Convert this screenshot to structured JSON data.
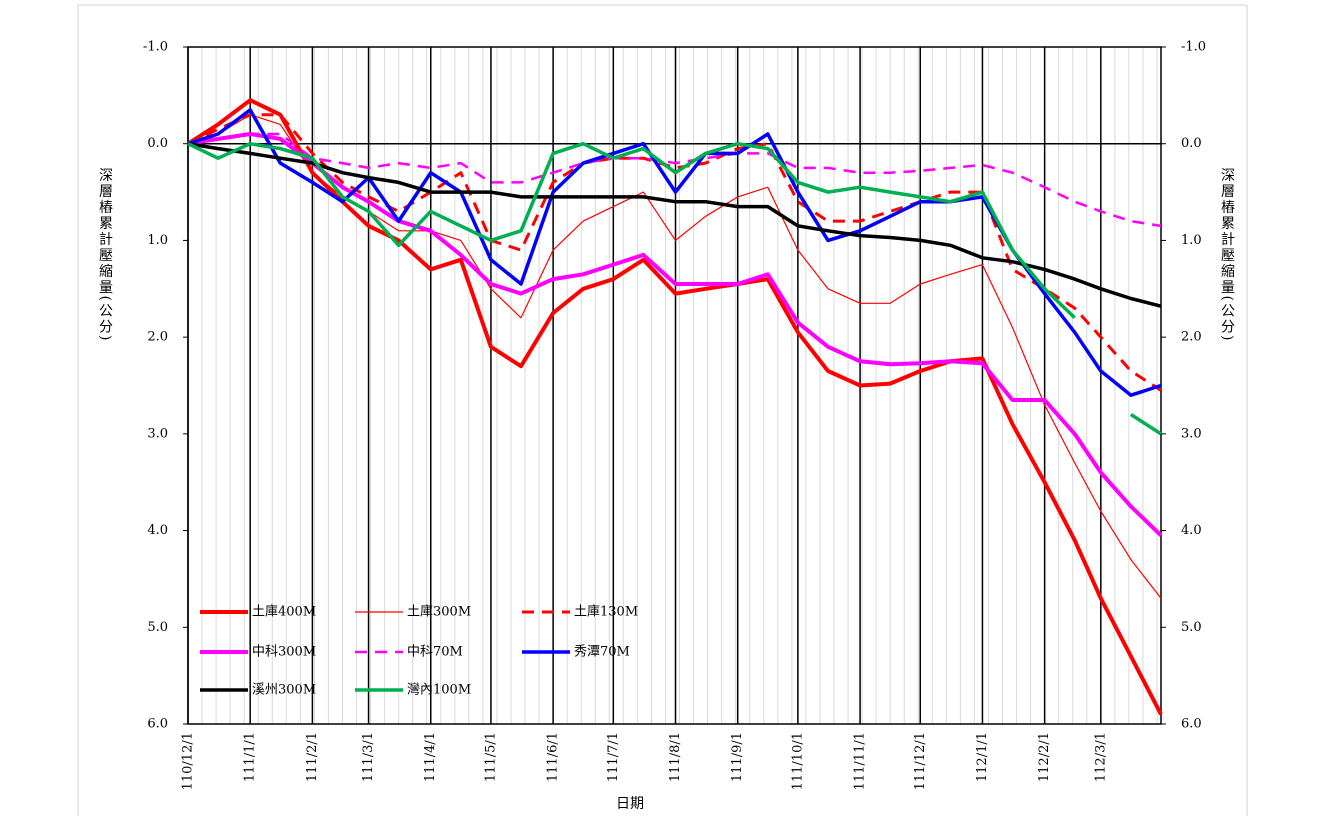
{
  "chart_data": {
    "type": "line",
    "xlabel": "日期",
    "ylabel": "深層樁累計壓縮量(公分)",
    "y2label": "深層樁累計壓縮量(公分)",
    "x": [
      "110/12/1",
      "110/12/16",
      "111/1/1",
      "111/1/16",
      "111/2/1",
      "111/2/16",
      "111/3/1",
      "111/3/16",
      "111/4/1",
      "111/4/16",
      "111/5/1",
      "111/5/16",
      "111/6/1",
      "111/6/16",
      "111/7/1",
      "111/7/16",
      "111/8/1",
      "111/8/16",
      "111/9/1",
      "111/9/16",
      "111/10/1",
      "111/10/16",
      "111/11/1",
      "111/11/16",
      "111/12/1",
      "111/12/16",
      "112/1/1",
      "112/1/16",
      "112/2/1",
      "112/2/16",
      "112/3/1",
      "112/3/16",
      "112/3/31"
    ],
    "xlim": [
      "110/12/1",
      "112/3/31"
    ],
    "xticks": [
      "110/12/1",
      "111/1/1",
      "111/2/1",
      "111/3/1",
      "111/4/1",
      "111/5/1",
      "111/6/1",
      "111/7/1",
      "111/8/1",
      "111/9/1",
      "111/10/1",
      "111/11/1",
      "111/12/1",
      "112/1/1",
      "112/2/1",
      "112/3/1"
    ],
    "ylim": [
      -1,
      6
    ],
    "y_inverted": true,
    "yticks": [
      {
        "value": -1,
        "label": "-1.0",
        "color": "#ff0000"
      },
      {
        "value": 0,
        "label": "0.0"
      },
      {
        "value": 1,
        "label": "1.0"
      },
      {
        "value": 2,
        "label": "2.0"
      },
      {
        "value": 3,
        "label": "3.0"
      },
      {
        "value": 4,
        "label": "4.0"
      },
      {
        "value": 5,
        "label": "5.0"
      },
      {
        "value": 6,
        "label": "6.0"
      }
    ],
    "y2lim": [
      -1,
      6
    ],
    "y2ticks": [
      {
        "value": -1,
        "label": "-1.0",
        "color": "#ff0000"
      },
      {
        "value": 0,
        "label": "0.0"
      },
      {
        "value": 1,
        "label": "1.0"
      },
      {
        "value": 2,
        "label": "2.0"
      },
      {
        "value": 3,
        "label": "3.0"
      },
      {
        "value": 4,
        "label": "4.0"
      },
      {
        "value": 5,
        "label": "5.0"
      },
      {
        "value": 6,
        "label": "6.0"
      }
    ],
    "zero_line": true,
    "x_grid": true,
    "legend": "lower left",
    "series": [
      {
        "name": "土庫400M",
        "color": "#ff0000",
        "width": 4,
        "dashed": false,
        "values": [
          0,
          -0.2,
          -0.45,
          -0.3,
          0.3,
          0.6,
          0.85,
          1.0,
          1.3,
          1.2,
          2.1,
          2.3,
          1.75,
          1.5,
          1.4,
          1.2,
          1.55,
          1.5,
          1.45,
          1.4,
          1.95,
          2.35,
          2.5,
          2.48,
          2.35,
          2.25,
          2.22,
          2.9,
          3.5,
          4.1,
          4.7,
          5.3,
          5.9
        ]
      },
      {
        "name": "土庫300M",
        "color": "#ff0000",
        "width": 1.2,
        "dashed": false,
        "values": [
          0,
          -0.1,
          -0.3,
          -0.2,
          0.3,
          0.55,
          0.7,
          0.9,
          0.9,
          1.0,
          1.5,
          1.8,
          1.1,
          0.8,
          0.65,
          0.5,
          1.0,
          0.75,
          0.55,
          0.45,
          1.1,
          1.5,
          1.65,
          1.65,
          1.45,
          1.35,
          1.25,
          1.9,
          2.7,
          3.3,
          3.8,
          4.3,
          4.7
        ]
      },
      {
        "name": "土庫130M",
        "color": "#ff0000",
        "width": 3,
        "dashed": true,
        "values": [
          0,
          -0.15,
          -0.3,
          -0.3,
          0.1,
          0.4,
          0.55,
          0.7,
          0.5,
          0.3,
          1.0,
          1.1,
          0.4,
          0.2,
          0.15,
          0.15,
          0.25,
          0.2,
          0.05,
          0,
          0.6,
          0.8,
          0.8,
          0.7,
          0.6,
          0.5,
          0.5,
          1.3,
          1.5,
          1.7,
          2.0,
          2.35,
          2.55
        ]
      },
      {
        "name": "中科300M",
        "color": "#ff00ff",
        "width": 4,
        "dashed": false,
        "values": [
          0,
          -0.05,
          -0.1,
          -0.05,
          0.2,
          0.45,
          0.6,
          0.8,
          0.9,
          1.15,
          1.45,
          1.55,
          1.4,
          1.35,
          1.25,
          1.15,
          1.45,
          1.45,
          1.45,
          1.35,
          1.85,
          2.1,
          2.25,
          2.28,
          2.27,
          2.25,
          2.27,
          2.65,
          2.65,
          3.0,
          3.4,
          3.75,
          4.05
        ]
      },
      {
        "name": "中科70M",
        "color": "#ff00ff",
        "width": 2.5,
        "dashed": true,
        "values": [
          0,
          -0.05,
          -0.1,
          -0.1,
          0.15,
          0.2,
          0.25,
          0.2,
          0.25,
          0.2,
          0.4,
          0.4,
          0.3,
          0.2,
          0.15,
          0.15,
          0.2,
          0.15,
          0.1,
          0.1,
          0.25,
          0.25,
          0.3,
          0.3,
          0.28,
          0.25,
          0.22,
          0.3,
          0.45,
          0.6,
          0.7,
          0.8,
          0.85
        ]
      },
      {
        "name": "秀潭70M",
        "color": "#0000ff",
        "width": 3.5,
        "dashed": false,
        "values": [
          0,
          -0.1,
          -0.35,
          0.2,
          0.4,
          0.6,
          0.35,
          0.8,
          0.3,
          0.5,
          1.2,
          1.45,
          0.5,
          0.2,
          0.1,
          0,
          0.5,
          0.1,
          0.1,
          -0.1,
          0.5,
          1.0,
          0.9,
          0.75,
          0.6,
          0.6,
          0.55,
          1.1,
          1.55,
          1.95,
          2.35,
          2.6,
          2.5
        ]
      },
      {
        "name": "溪州300M",
        "color": "#000000",
        "width": 3.5,
        "dashed": false,
        "values": [
          0,
          0.05,
          0.1,
          0.15,
          0.2,
          0.3,
          0.35,
          0.4,
          0.5,
          0.5,
          0.5,
          0.55,
          0.55,
          0.55,
          0.55,
          0.55,
          0.6,
          0.6,
          0.65,
          0.65,
          0.85,
          0.9,
          0.95,
          0.97,
          1.0,
          1.05,
          1.18,
          1.22,
          1.3,
          1.4,
          1.5,
          1.6,
          1.68
        ]
      },
      {
        "name": "灣內100M",
        "color": "#00b050",
        "width": 3.5,
        "dashed": false,
        "values": [
          0,
          0.15,
          0,
          0.05,
          0.15,
          0.55,
          0.7,
          1.05,
          0.7,
          0.85,
          1.0,
          0.9,
          0.1,
          0,
          0.15,
          0.05,
          0.3,
          0.1,
          0,
          0.05,
          0.4,
          0.5,
          0.45,
          0.5,
          0.55,
          0.6,
          0.5,
          1.1,
          1.5,
          1.8,
          null,
          2.8,
          3.0
        ]
      }
    ]
  }
}
